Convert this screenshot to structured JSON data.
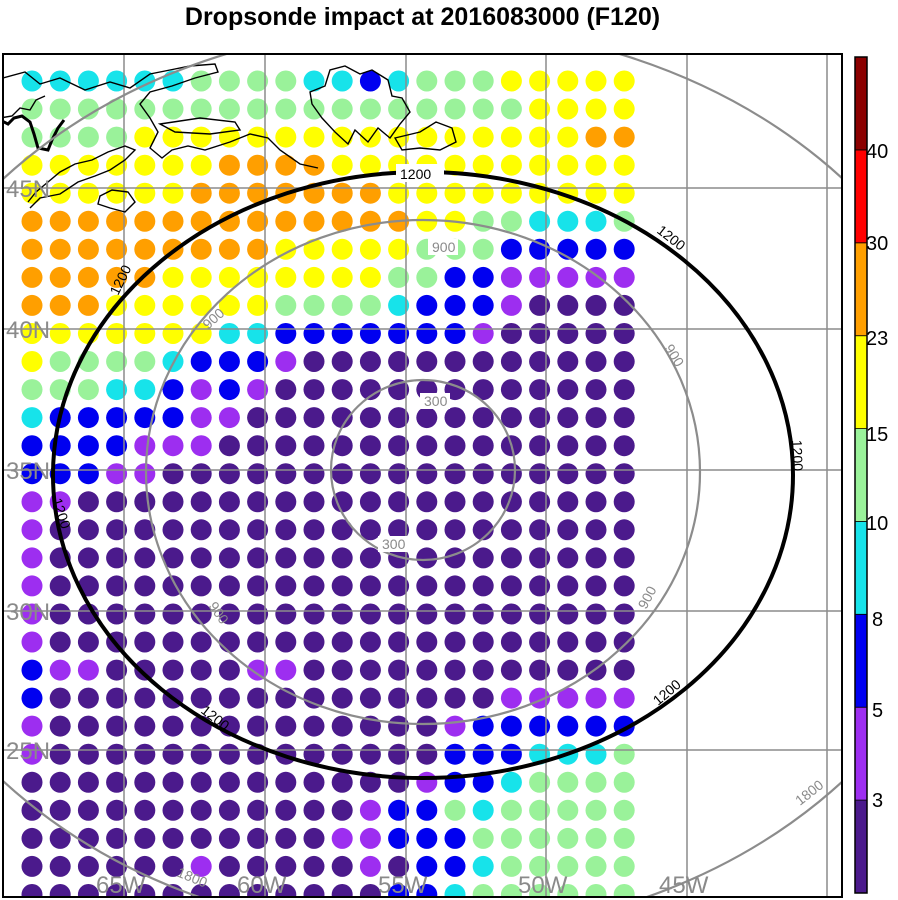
{
  "title": "Dropsonde impact at 2016083000 (F120)",
  "map": {
    "lat_labels": [
      "45N",
      "40N",
      "35N",
      "30N",
      "25N"
    ],
    "lon_labels": [
      "65W",
      "60W",
      "55W",
      "50W",
      "45W"
    ],
    "ring_labels": {
      "r300": "300",
      "r900": "900",
      "r1200": "1200",
      "r1800": "1800"
    }
  },
  "colorbar": {
    "labels": [
      "3",
      "5",
      "8",
      "10",
      "15",
      "23",
      "30",
      "40"
    ],
    "colors": [
      "#4b1a8c",
      "#9d2ef0",
      "#0000f0",
      "#17e3ea",
      "#9af29a",
      "#ffff00",
      "#ff9f00",
      "#ff0000",
      "#8b0000"
    ]
  },
  "point_rows": [
    "ccccccggggccbcgggyyyyy",
    "ggggggggggggggggggyyyy",
    "ggggyyyyyyyyyyyyyyyyoo",
    "yyyyyyyooooyyyyyyyyyyy",
    "yyyyyyoooooooyyyyyyyyy",
    "ooooooooooooooyyggcccg",
    "oooooooooyyyyygggbbbbb",
    "oooooyyyyyyyyggbbppppp",
    "oooyyyyyyggggcbbbpdddd",
    "yyyyyyyccbbbbbbbpddddd",
    "yggggcbbbpdddddddddddd",
    "gggccbpbpddddddddddddd",
    "cbbbbbppdddddddddddddd",
    "bbbbpppddddddddddddddd",
    "bbbppddddddddddddddddd",
    "ppdddddddddddddddddddd",
    "pddddddddddddddddddddd",
    "pddddddddddddddddddddd",
    "pddddddddddddddddddddd",
    "pddddddddddddddddddddd",
    "pddddddddddddddddddddd",
    "bppdddddppdddddddddddd",
    "bddddddddddddddddppppp",
    "pddddddddddddddpbbbbbb",
    "pddddddddddddddbbbcccg",
    "ddddddddddddddpbbcgggg",
    "ddddddddddddpbbgcggggg",
    "dddddddddddppbbbgggggg",
    "ddddddpdddddpdbbcggggg",
    "dddddddddddddbbcgggggg"
  ]
}
